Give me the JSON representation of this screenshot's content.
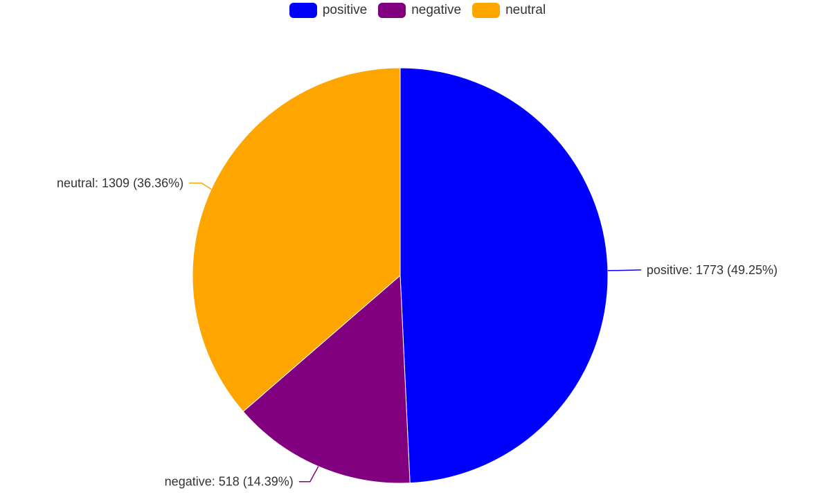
{
  "chart_data": {
    "type": "pie",
    "title": "",
    "categories": [
      "positive",
      "negative",
      "neutral"
    ],
    "values": [
      1773,
      518,
      1309
    ],
    "percentages": [
      "49.25%",
      "14.39%",
      "36.36%"
    ],
    "colors": [
      "#0000ff",
      "#800080",
      "#ffa500"
    ],
    "legend_position": "top-center",
    "start_angle_deg": 90,
    "direction": "clockwise",
    "labels": [
      "positive: 1773 (49.25%)",
      "negative: 518 (14.39%)",
      "neutral: 1309 (36.36%)"
    ]
  }
}
